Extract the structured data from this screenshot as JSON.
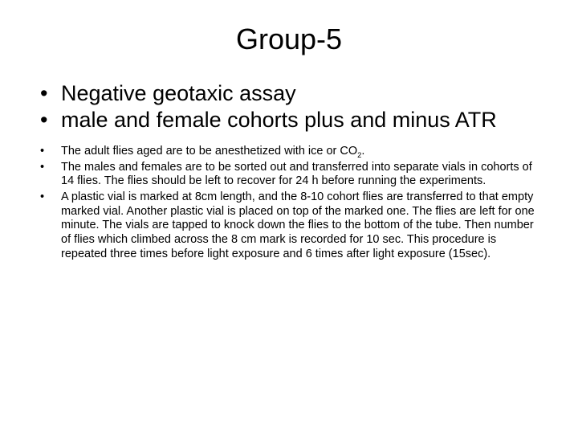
{
  "title": "Group-5",
  "primary_bullets": [
    "Negative geotaxic assay",
    "male and female cohorts plus and minus ATR"
  ],
  "secondary_bullets": [
    {
      "pre": "The adult flies aged are to be anesthetized with ice or CO",
      "sub": "2",
      "post": "."
    },
    {
      "pre": "The males and females are to be sorted out and transferred into separate vials in cohorts of 14 flies. The flies should be left to recover for 24 h before running the experiments.",
      "sub": "",
      "post": ""
    },
    {
      "pre": "A plastic vial is marked at 8cm length, and the 8-10 cohort flies are transferred to that empty marked vial. Another plastic vial is placed on top of the marked one. The flies are left for one minute. The vials are tapped to knock down the flies to the bottom of the tube. Then number of flies which climbed across the 8 cm mark is recorded for 10 sec. This procedure is repeated three times before light exposure and 6 times after light exposure (15sec).",
      "sub": "",
      "post": ""
    }
  ],
  "colors": {
    "background": "#ffffff",
    "text": "#000000"
  },
  "typography": {
    "title_fontsize": 36,
    "primary_fontsize": 27,
    "secondary_fontsize": 14.5,
    "font_family": "Arial"
  }
}
